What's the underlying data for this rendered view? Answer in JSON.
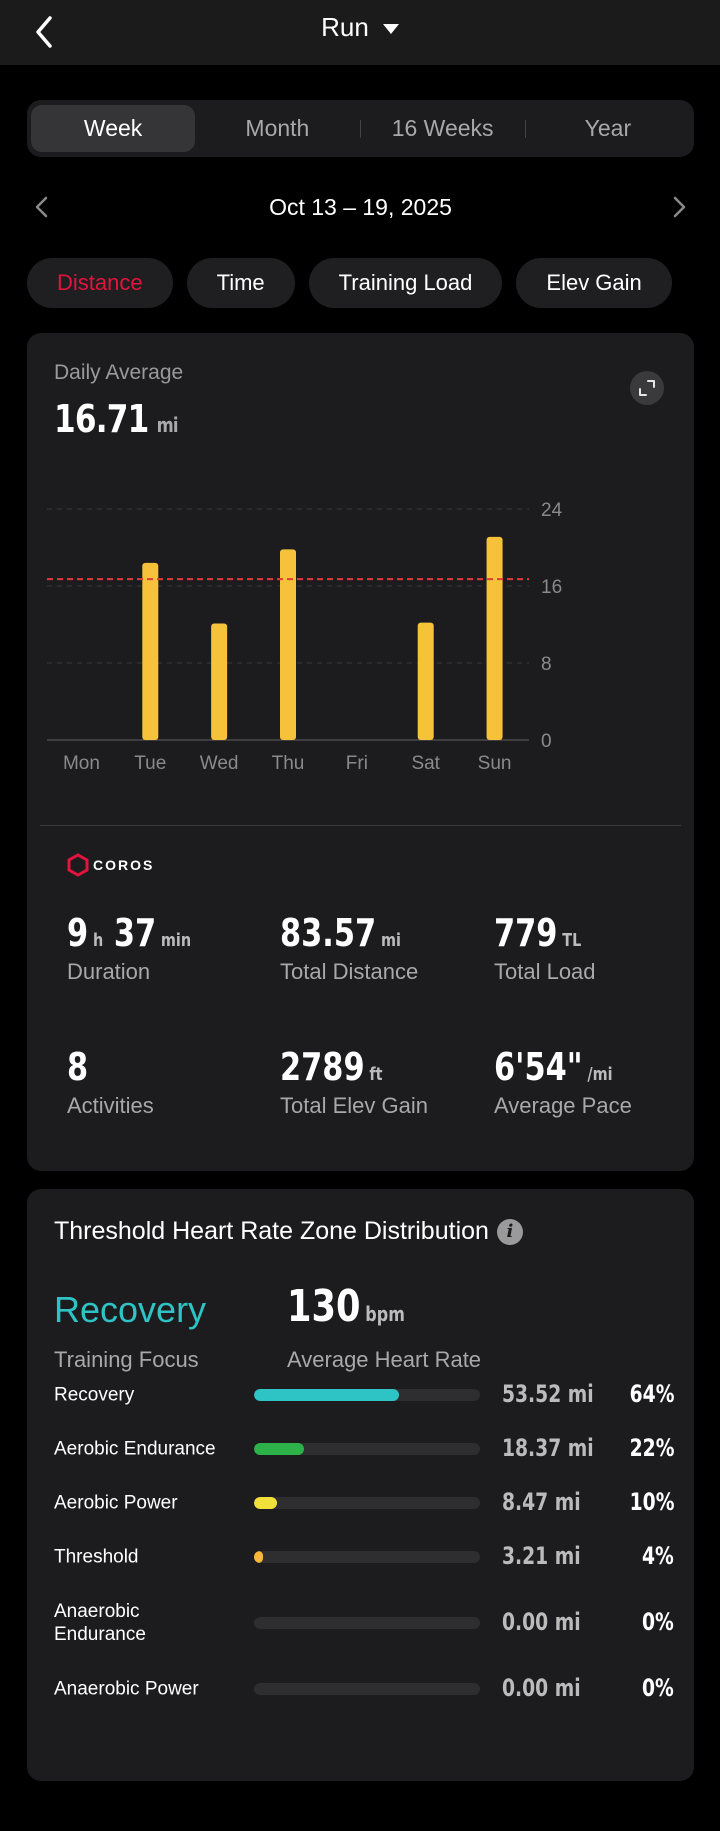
{
  "header": {
    "title": "Run"
  },
  "period_tabs": [
    {
      "label": "Week",
      "active": true
    },
    {
      "label": "Month",
      "active": false
    },
    {
      "label": "16 Weeks",
      "active": false
    },
    {
      "label": "Year",
      "active": false
    }
  ],
  "date_range": "Oct 13 – 19, 2025",
  "metric_pills": [
    {
      "label": "Distance",
      "active": true
    },
    {
      "label": "Time",
      "active": false
    },
    {
      "label": "Training Load",
      "active": false
    },
    {
      "label": "Elev Gain",
      "active": false
    }
  ],
  "summary": {
    "daily_label": "Daily Average",
    "daily_value": "16.71",
    "daily_unit": "mi",
    "brand": "COROS"
  },
  "chart_data": {
    "type": "bar",
    "categories": [
      "Mon",
      "Tue",
      "Wed",
      "Thu",
      "Fri",
      "Sat",
      "Sun"
    ],
    "values": [
      0,
      18.4,
      12.1,
      19.8,
      0,
      12.2,
      21.1
    ],
    "average": 16.71,
    "yticks": [
      0,
      8,
      16,
      24
    ],
    "ylim": [
      0,
      24
    ],
    "bar_color": "#f6c23a",
    "average_line_color": "#e03a3a",
    "axis_position": "right",
    "grid": true
  },
  "stats": [
    {
      "value": "9",
      "unit": "h",
      "value2": "37",
      "unit2": "min",
      "label": "Duration"
    },
    {
      "value": "83.57",
      "unit": "mi",
      "label": "Total Distance"
    },
    {
      "value": "779",
      "unit": "TL",
      "label": "Total Load"
    },
    {
      "value": "8",
      "unit": "",
      "label": "Activities"
    },
    {
      "value": "2789",
      "unit": "ft",
      "label": "Total Elev Gain"
    },
    {
      "value": "6'54\"",
      "unit": "/mi",
      "label": "Average Pace"
    }
  ],
  "hr_zone": {
    "title": "Threshold Heart Rate Zone Distribution",
    "focus_value": "Recovery",
    "focus_label": "Training Focus",
    "avg_hr_value": "130",
    "avg_hr_unit": "bpm",
    "avg_hr_label": "Average Heart Rate",
    "zones": [
      {
        "name": "Recovery",
        "distance": "53.52 mi",
        "percent": "64%",
        "fill": 0.64,
        "color": "#2ec4c6"
      },
      {
        "name": "Aerobic Endurance",
        "distance": "18.37 mi",
        "percent": "22%",
        "fill": 0.22,
        "color": "#2db24a"
      },
      {
        "name": "Aerobic Power",
        "distance": "8.47 mi",
        "percent": "10%",
        "fill": 0.1,
        "color": "#f2e03a"
      },
      {
        "name": "Threshold",
        "distance": "3.21 mi",
        "percent": "4%",
        "fill": 0.04,
        "color": "#f6b73a"
      },
      {
        "name": "Anaerobic Endurance",
        "distance": "0.00 mi",
        "percent": "0%",
        "fill": 0,
        "color": "#e06a3a"
      },
      {
        "name": "Anaerobic Power",
        "distance": "0.00 mi",
        "percent": "0%",
        "fill": 0,
        "color": "#e0143c"
      }
    ]
  }
}
